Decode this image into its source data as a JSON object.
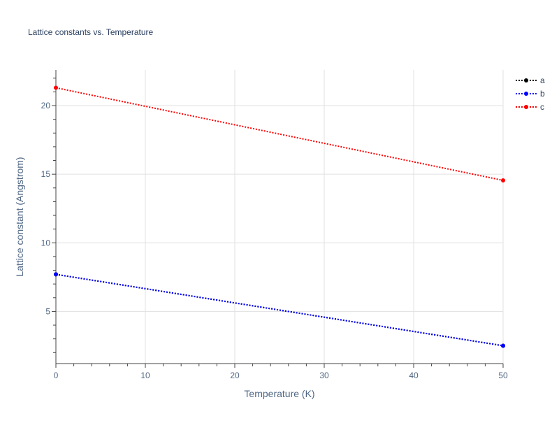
{
  "chart_data": {
    "type": "line",
    "title": "Lattice constants vs. Temperature",
    "xlabel": "Temperature (K)",
    "ylabel": "Lattice constant (Angstrom)",
    "xlim": [
      0,
      50
    ],
    "ylim": [
      1.2,
      22.6
    ],
    "x_ticks": [
      0,
      10,
      20,
      30,
      40,
      50
    ],
    "y_ticks": [
      5,
      10,
      15,
      20
    ],
    "x_minor_step": 2,
    "grid": true,
    "legend_position": "top-right",
    "series": [
      {
        "name": "a",
        "color": "#000000",
        "x": [
          0,
          50
        ],
        "y": [
          7.7,
          2.5
        ]
      },
      {
        "name": "b",
        "color": "#0000ff",
        "x": [
          0,
          50
        ],
        "y": [
          7.7,
          2.5
        ]
      },
      {
        "name": "c",
        "color": "#ff0000",
        "x": [
          0,
          50
        ],
        "y": [
          21.3,
          14.55
        ]
      }
    ]
  }
}
